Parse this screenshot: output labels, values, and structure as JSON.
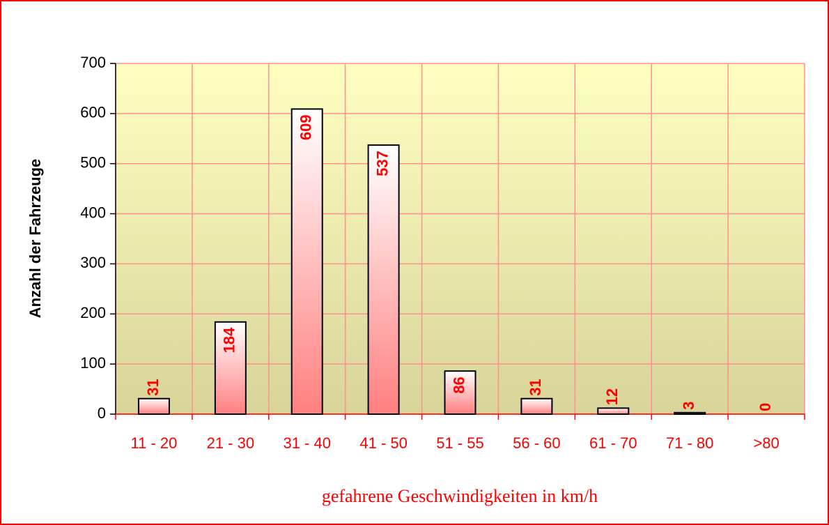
{
  "chart_data": {
    "type": "bar",
    "categories": [
      "11 - 20",
      "21 - 30",
      "31 - 40",
      "41 - 50",
      "51 - 55",
      "56 - 60",
      "61 - 70",
      "71 - 80",
      ">80"
    ],
    "values": [
      31,
      184,
      609,
      537,
      86,
      31,
      12,
      3,
      0
    ],
    "ylim": [
      0,
      700
    ],
    "yticks": [
      0,
      100,
      200,
      300,
      400,
      500,
      600,
      700
    ],
    "ylabel": "Anzahl der Fahrzeuge",
    "xlabel": "gefahrene Geschwindigkeiten in km/h",
    "grid": true,
    "color": "#ff7f7f",
    "label_color": "#ff0000"
  }
}
